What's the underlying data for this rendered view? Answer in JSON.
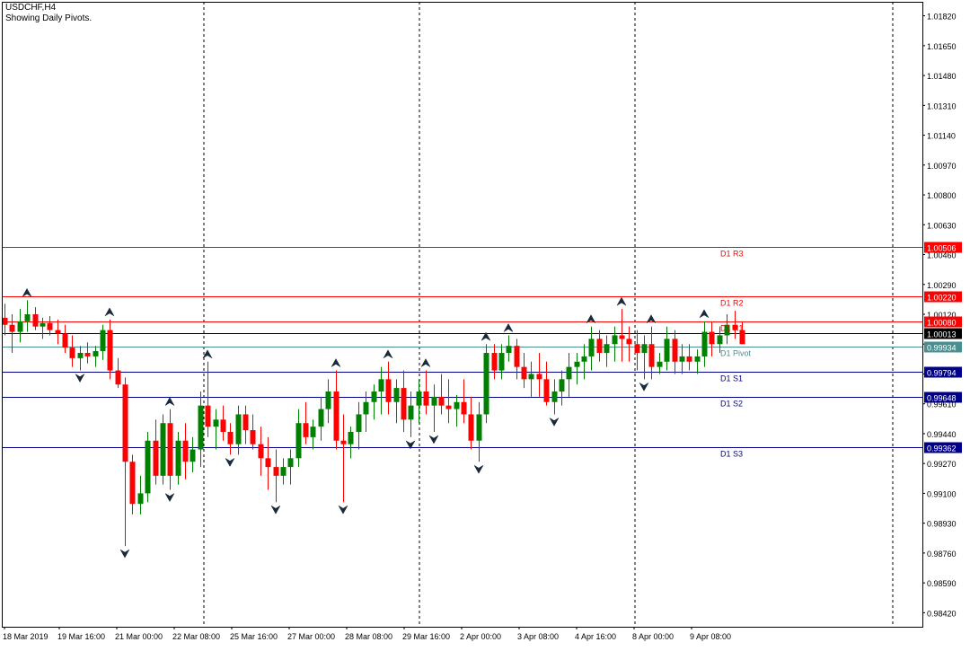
{
  "header": {
    "symbol": "USDCHF,H4",
    "subtitle": "Showing Daily Pivots."
  },
  "colors": {
    "background": "#ffffff",
    "bull": "#008000",
    "bear": "#ff0000",
    "resistance": "#ff0000",
    "pivot": "#4a8f8f",
    "support": "#00008b",
    "price_line": "#000000",
    "period_separator": "#000000"
  },
  "chart_data": {
    "type": "candlestick",
    "instrument": "USDCHF",
    "timeframe": "H4",
    "ylim": [
      0.9834,
      1.019
    ],
    "y_ticks": [
      "1.01820",
      "1.01650",
      "1.01480",
      "1.01310",
      "1.01140",
      "1.00970",
      "1.00800",
      "1.00630",
      "1.00460",
      "1.00290",
      "1.00120",
      "0.99950",
      "0.99780",
      "0.99610",
      "0.99440",
      "0.99270",
      "0.99100",
      "0.98930",
      "0.98760",
      "0.98590",
      "0.98420"
    ],
    "x_ticks": [
      "18 Mar 2019",
      "19 Mar 16:00",
      "21 Mar 00:00",
      "22 Mar 08:00",
      "25 Mar 16:00",
      "27 Mar 00:00",
      "28 Mar 08:00",
      "29 Mar 16:00",
      "2 Apr 00:00",
      "3 Apr 08:00",
      "4 Apr 16:00",
      "8 Apr 00:00",
      "9 Apr 08:00"
    ],
    "pivot_levels": [
      {
        "name": "D1 R3",
        "value": "1.00506",
        "kind": "resistance"
      },
      {
        "name": "D1 R2",
        "value": "1.00220",
        "kind": "resistance"
      },
      {
        "name": "D1 R1",
        "value": "1.00080",
        "kind": "resistance"
      },
      {
        "name": "D1 Pivot",
        "value": "0.99934",
        "kind": "pivot"
      },
      {
        "name": "D1 S1",
        "value": "0.99794",
        "kind": "support"
      },
      {
        "name": "D1 S2",
        "value": "0.99648",
        "kind": "support"
      },
      {
        "name": "D1 S3",
        "value": "0.99362",
        "kind": "support"
      }
    ],
    "current_price": "1.00013",
    "candles_ohlc": [
      [
        1.001,
        1.0018,
        1.0,
        1.0006
      ],
      [
        1.0006,
        1.0012,
        0.999,
        1.0002
      ],
      [
        1.0002,
        1.0015,
        0.9996,
        1.0008
      ],
      [
        1.0008,
        1.002,
        1.0002,
        1.0012
      ],
      [
        1.0012,
        1.0016,
        1.0003,
        1.0005
      ],
      [
        1.0005,
        1.001,
        0.9998,
        1.0007
      ],
      [
        1.0007,
        1.0011,
        1.0,
        1.0003
      ],
      [
        1.0003,
        1.0009,
        0.9995,
        1.0001
      ],
      [
        1.0001,
        1.0006,
        0.999,
        0.9993
      ],
      [
        0.9993,
        1.0,
        0.9982,
        0.9987
      ],
      [
        0.9987,
        0.9994,
        0.998,
        0.999
      ],
      [
        0.999,
        0.9996,
        0.9984,
        0.9988
      ],
      [
        0.9988,
        0.9994,
        0.9982,
        0.9991
      ],
      [
        0.9991,
        1.0006,
        0.9986,
        1.0003
      ],
      [
        1.0003,
        1.0009,
        0.9975,
        0.998
      ],
      [
        0.998,
        0.9987,
        0.997,
        0.9972
      ],
      [
        0.9972,
        0.9976,
        0.988,
        0.9928
      ],
      [
        0.9928,
        0.9932,
        0.9898,
        0.9904
      ],
      [
        0.9904,
        0.992,
        0.9898,
        0.991
      ],
      [
        0.991,
        0.9945,
        0.9905,
        0.994
      ],
      [
        0.994,
        0.9952,
        0.9915,
        0.992
      ],
      [
        0.992,
        0.9955,
        0.9915,
        0.995
      ],
      [
        0.995,
        0.9958,
        0.9912,
        0.992
      ],
      [
        0.992,
        0.9945,
        0.9915,
        0.994
      ],
      [
        0.994,
        0.995,
        0.9918,
        0.9928
      ],
      [
        0.9928,
        0.9942,
        0.9922,
        0.9935
      ],
      [
        0.9935,
        0.9968,
        0.9925,
        0.996
      ],
      [
        0.996,
        0.9985,
        0.9942,
        0.9948
      ],
      [
        0.9948,
        0.9958,
        0.9935,
        0.9952
      ],
      [
        0.9952,
        0.996,
        0.994,
        0.9945
      ],
      [
        0.9945,
        0.995,
        0.9932,
        0.9938
      ],
      [
        0.9938,
        0.996,
        0.9932,
        0.9955
      ],
      [
        0.9955,
        0.996,
        0.9938,
        0.9946
      ],
      [
        0.9946,
        0.9955,
        0.9935,
        0.9938
      ],
      [
        0.9938,
        0.9948,
        0.992,
        0.993
      ],
      [
        0.993,
        0.9942,
        0.9912,
        0.9925
      ],
      [
        0.9925,
        0.9935,
        0.9905,
        0.992
      ],
      [
        0.992,
        0.993,
        0.9915,
        0.9925
      ],
      [
        0.9925,
        0.9935,
        0.9915,
        0.993
      ],
      [
        0.993,
        0.9958,
        0.9925,
        0.995
      ],
      [
        0.995,
        0.9962,
        0.9938,
        0.9942
      ],
      [
        0.9942,
        0.9952,
        0.9935,
        0.9948
      ],
      [
        0.9948,
        0.9965,
        0.994,
        0.9958
      ],
      [
        0.9958,
        0.9975,
        0.995,
        0.9968
      ],
      [
        0.9968,
        0.998,
        0.9935,
        0.994
      ],
      [
        0.994,
        0.9955,
        0.9905,
        0.9938
      ],
      [
        0.9938,
        0.9948,
        0.993,
        0.9945
      ],
      [
        0.9945,
        0.9962,
        0.9935,
        0.9955
      ],
      [
        0.9955,
        0.9968,
        0.9945,
        0.9962
      ],
      [
        0.9962,
        0.9972,
        0.9952,
        0.9968
      ],
      [
        0.9968,
        0.9982,
        0.9955,
        0.9975
      ],
      [
        0.9975,
        0.9985,
        0.9955,
        0.9962
      ],
      [
        0.9962,
        0.9975,
        0.995,
        0.997
      ],
      [
        0.997,
        0.998,
        0.9945,
        0.9952
      ],
      [
        0.9952,
        0.9968,
        0.9942,
        0.996
      ],
      [
        0.996,
        0.9975,
        0.995,
        0.9968
      ],
      [
        0.9968,
        0.998,
        0.9955,
        0.996
      ],
      [
        0.996,
        0.9972,
        0.9945,
        0.9965
      ],
      [
        0.9965,
        0.9978,
        0.9955,
        0.996
      ],
      [
        0.996,
        0.9975,
        0.995,
        0.9958
      ],
      [
        0.9958,
        0.9966,
        0.9948,
        0.9962
      ],
      [
        0.9962,
        0.9975,
        0.995,
        0.9955
      ],
      [
        0.9955,
        0.9965,
        0.9935,
        0.994
      ],
      [
        0.994,
        0.9962,
        0.9928,
        0.9955
      ],
      [
        0.9955,
        0.9995,
        0.995,
        0.999
      ],
      [
        0.999,
        0.9995,
        0.9975,
        0.998
      ],
      [
        0.998,
        0.9995,
        0.9975,
        0.999
      ],
      [
        0.999,
        1.0,
        0.9985,
        0.9994
      ],
      [
        0.9994,
        0.9998,
        0.9975,
        0.9982
      ],
      [
        0.9982,
        0.999,
        0.997,
        0.9975
      ],
      [
        0.9975,
        0.9985,
        0.9965,
        0.9978
      ],
      [
        0.9978,
        0.999,
        0.9965,
        0.9975
      ],
      [
        0.9975,
        0.9985,
        0.996,
        0.9962
      ],
      [
        0.9962,
        0.9975,
        0.9955,
        0.9968
      ],
      [
        0.9968,
        0.998,
        0.996,
        0.9975
      ],
      [
        0.9975,
        0.999,
        0.9965,
        0.9982
      ],
      [
        0.9982,
        0.999,
        0.9972,
        0.9985
      ],
      [
        0.9985,
        0.9995,
        0.9975,
        0.9988
      ],
      [
        0.9988,
        1.0005,
        0.998,
        0.9998
      ],
      [
        0.9998,
        1.0003,
        0.9985,
        0.999
      ],
      [
        0.999,
        1.0,
        0.9982,
        0.9995
      ],
      [
        0.9995,
        1.0005,
        0.9985,
        1.0
      ],
      [
        1.0,
        1.0015,
        0.9985,
        0.9998
      ],
      [
        0.9998,
        1.0005,
        0.9985,
        0.9995
      ],
      [
        0.9995,
        1.0003,
        0.998,
        0.999
      ],
      [
        0.999,
        1.0,
        0.9975,
        0.9995
      ],
      [
        0.9995,
        1.0005,
        0.9975,
        0.9982
      ],
      [
        0.9982,
        0.999,
        0.9978,
        0.9985
      ],
      [
        0.9985,
        1.0005,
        0.998,
        0.9998
      ],
      [
        0.9998,
        1.0003,
        0.9978,
        0.9985
      ],
      [
        0.9985,
        0.9995,
        0.9978,
        0.9988
      ],
      [
        0.9988,
        0.9995,
        0.998,
        0.9985
      ],
      [
        0.9985,
        0.9992,
        0.9978,
        0.9988
      ],
      [
        0.9988,
        1.0008,
        0.9982,
        1.0002
      ],
      [
        1.0002,
        1.0008,
        0.9988,
        0.9995
      ],
      [
        0.9995,
        1.0005,
        0.999,
        1.0
      ],
      [
        1.0,
        1.0012,
        0.9995,
        1.0006
      ],
      [
        1.0006,
        1.0014,
        0.9998,
        1.0003
      ],
      [
        1.0003,
        1.0008,
        0.9995,
        0.9995
      ]
    ]
  }
}
